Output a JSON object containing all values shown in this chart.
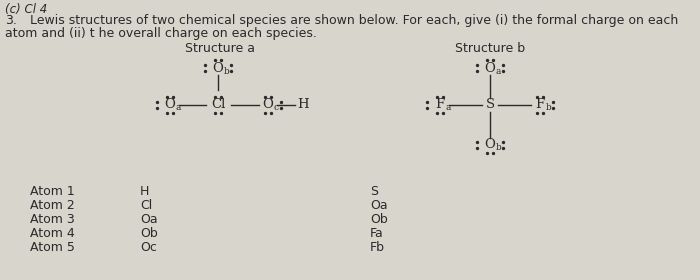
{
  "background_color": "#d8d5cc",
  "text_color": "#2a2a2a",
  "header_text": "(c) Cl 4",
  "question_number": "3.",
  "question_line1": "Lewis structures of two chemical species are shown below. For each, give (i) the formal charge on each",
  "question_line2": "atom and (ii) t he overall charge on each species.",
  "structure_a_title": "Structure a",
  "structure_b_title": "Structure b",
  "atom_label_col1": [
    "Atom 1",
    "Atom 2",
    "Atom 3",
    "Atom 4",
    "Atom 5"
  ],
  "atom_label_col2": [
    "H",
    "Cl",
    "Oa",
    "Ob",
    "Oc"
  ],
  "atom_label_col3": [
    "S",
    "Oa",
    "Ob",
    "Fa",
    "Fb"
  ]
}
